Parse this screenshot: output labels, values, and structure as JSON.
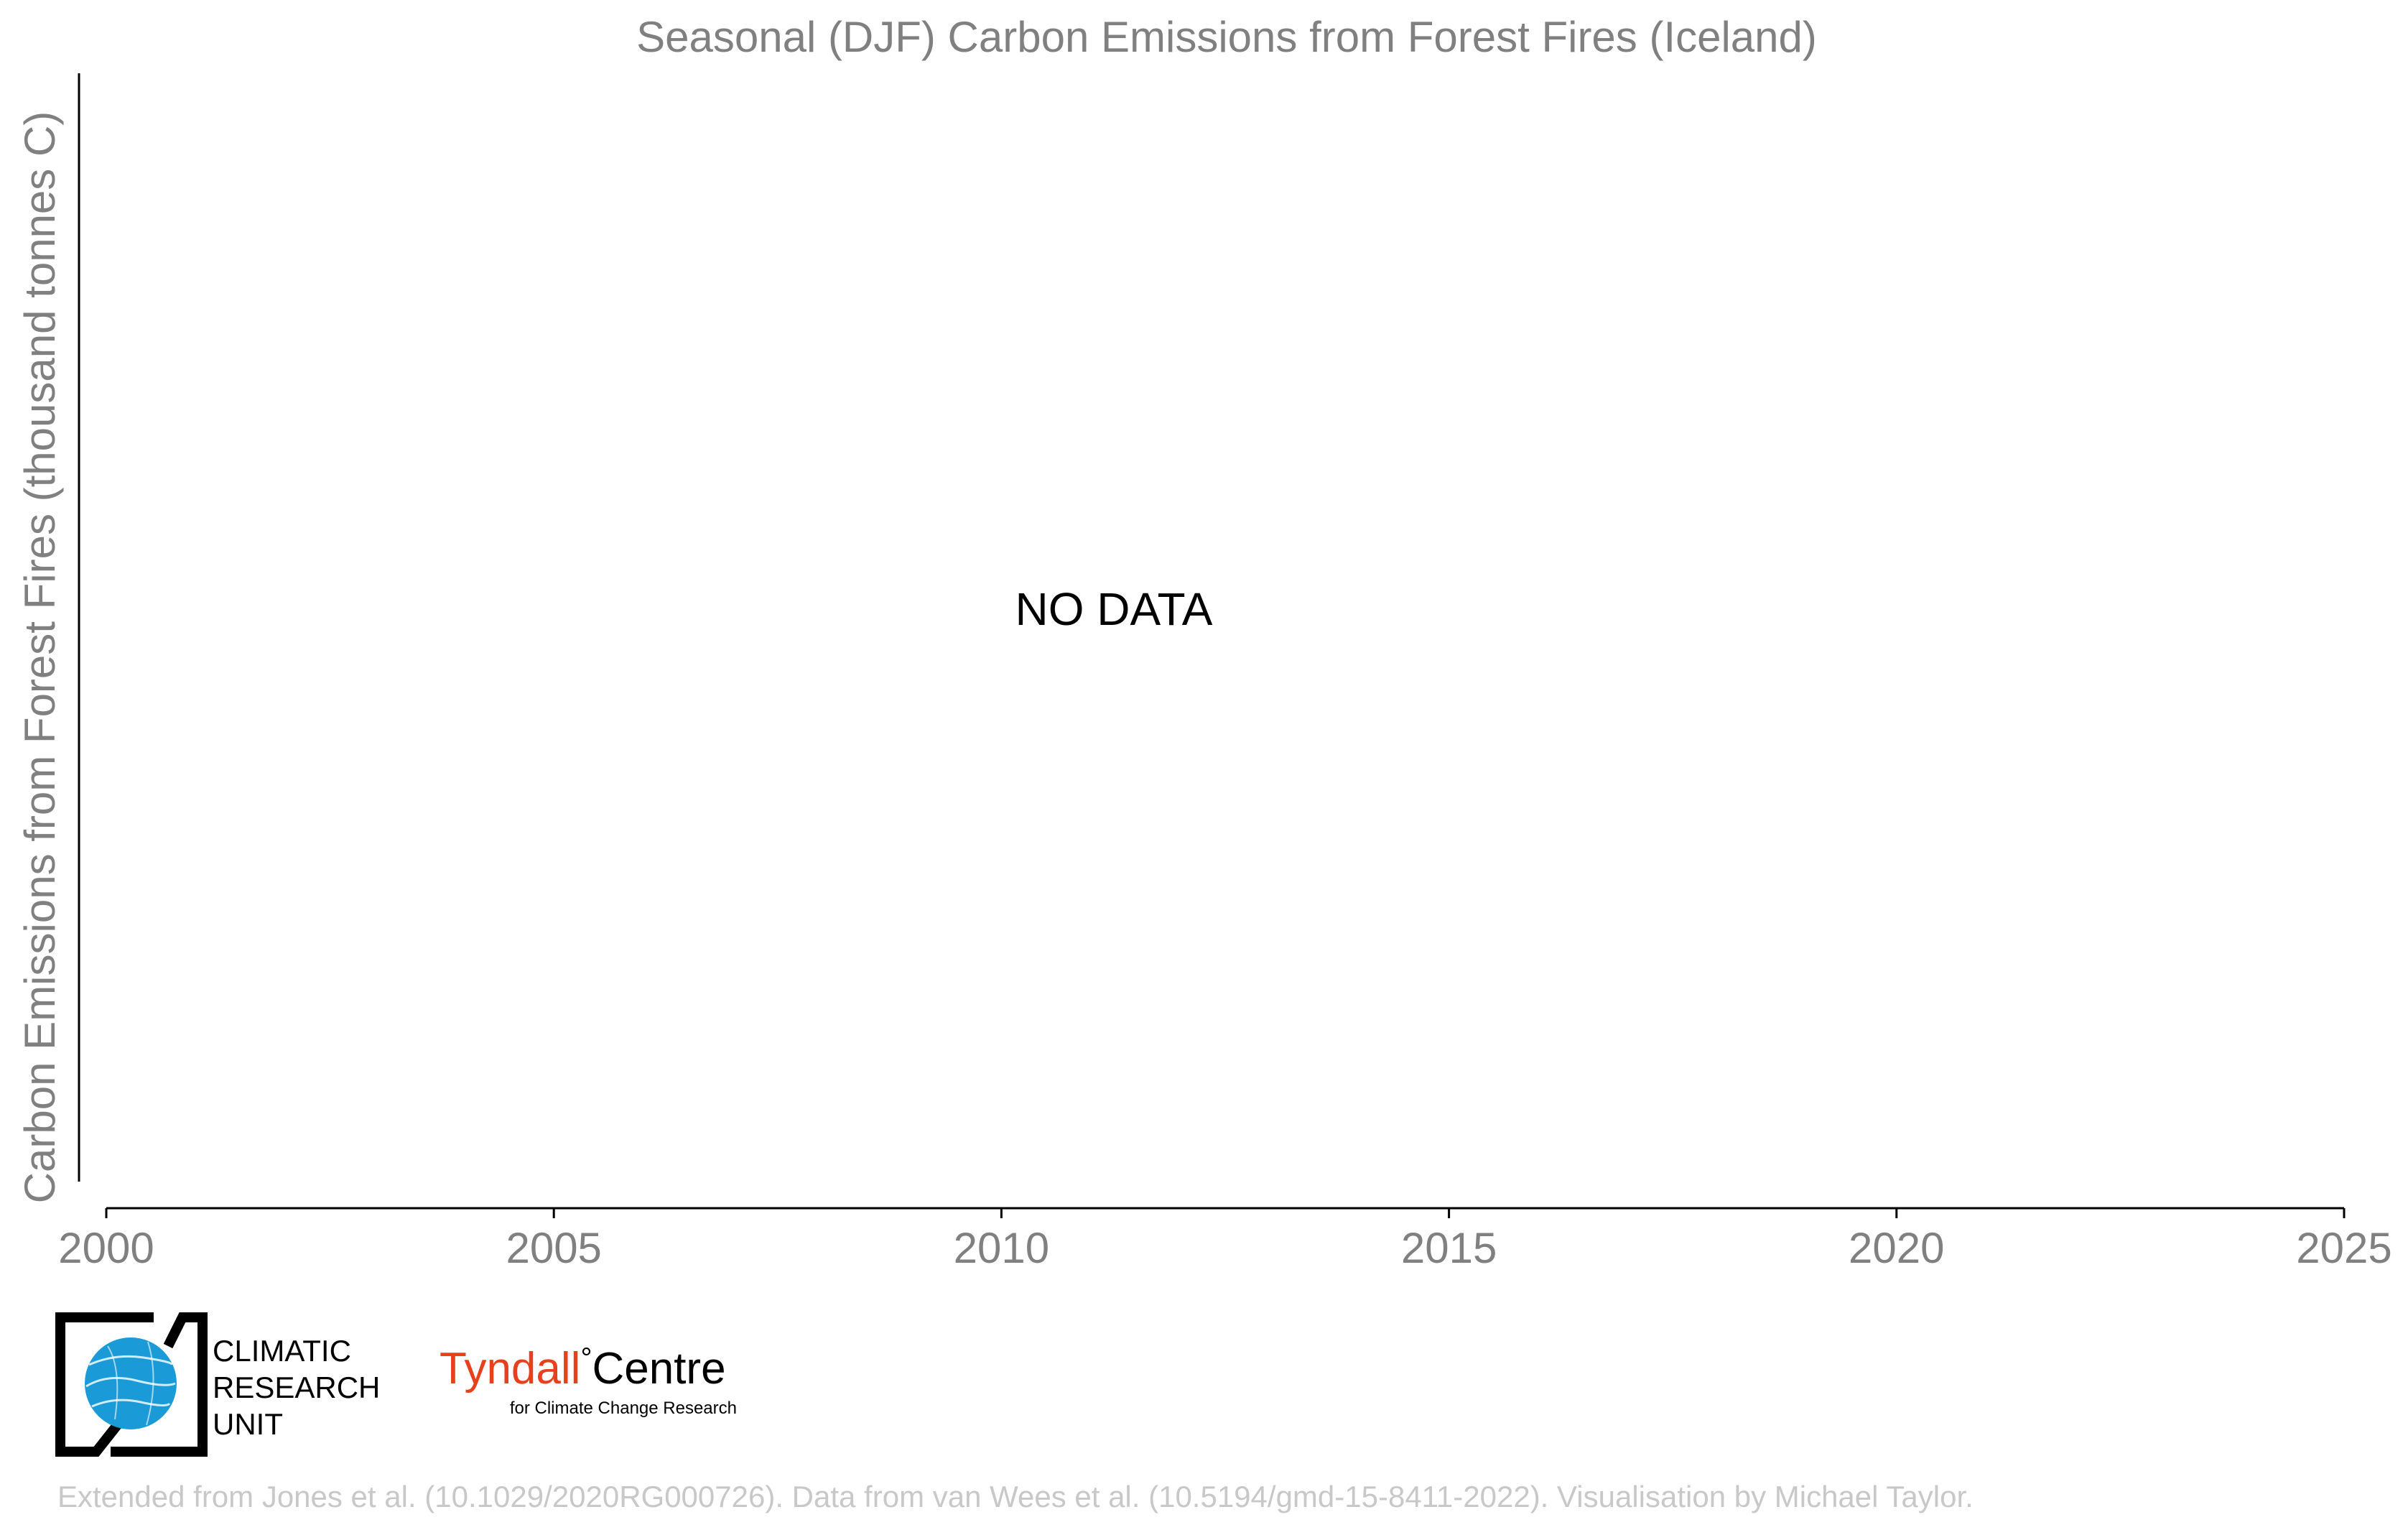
{
  "chart_data": {
    "type": "line",
    "title": "Seasonal (DJF) Carbon Emissions from Forest Fires (Iceland)",
    "xlabel": "",
    "ylabel": "Carbon Emissions from Forest Fires (thousand tonnes C)",
    "xlim": [
      2000,
      2025
    ],
    "x_ticks": [
      "2000",
      "2005",
      "2010",
      "2015",
      "2020",
      "2025"
    ],
    "y_ticks": [],
    "series": [],
    "annotation": "NO DATA",
    "grid": false,
    "legend": "none"
  },
  "branding": {
    "cru": {
      "line1": "CLIMATIC",
      "line2": "RESEARCH",
      "line3": "UNIT"
    },
    "tyndall": {
      "name_part1": "Tyndall",
      "degree": "°",
      "name_part2": "Centre",
      "tagline": "for Climate Change Research"
    }
  },
  "footer": {
    "credit": "Extended from Jones et al. (10.1029/2020RG000726). Data from van Wees et al. (10.5194/gmd-15-8411-2022). Visualisation by Michael Taylor."
  },
  "colors": {
    "title_text": "#808080",
    "axis_line": "#000000",
    "tick_label": "#808080",
    "annotation": "#000000",
    "credit_text": "#c8c8c8",
    "cru_globe": "#1a9ad6",
    "tyndall_red": "#e8401c"
  }
}
